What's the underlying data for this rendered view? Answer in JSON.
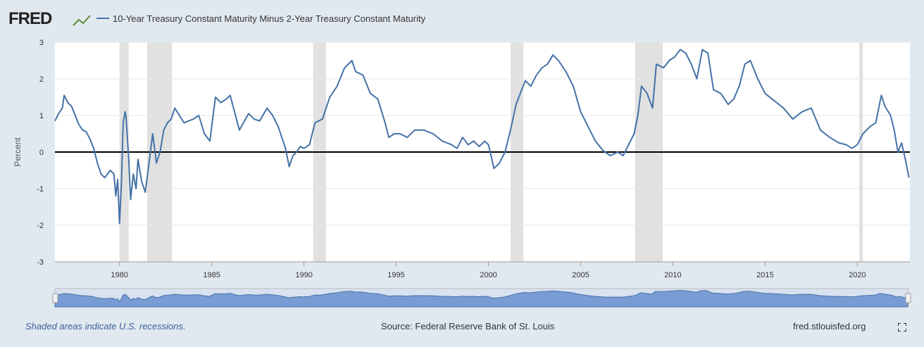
{
  "header": {
    "logo": "FRED",
    "series_title": "10-Year Treasury Constant Maturity Minus 2-Year Treasury Constant Maturity"
  },
  "footer": {
    "recession_note": "Shaded areas indicate U.S. recessions.",
    "source": "Source: Federal Reserve Bank of St. Louis",
    "site": "fred.stlouisfed.org"
  },
  "colors": {
    "line": "#4572a7",
    "recession": "#e1e1e1",
    "zero_line": "#000000",
    "background": "#e1e9f0",
    "plot_bg": "#ffffff",
    "navigator_fill": "#6a8fcf"
  },
  "icons": [
    "fred-chart-icon",
    "fullscreen-icon",
    "navigator-handle-icon"
  ],
  "chart_data": {
    "type": "line",
    "title": "10-Year Treasury Constant Maturity Minus 2-Year Treasury Constant Maturity",
    "ylabel": "Percent",
    "xlabel": "",
    "xlim": [
      1976.5,
      2022.85
    ],
    "ylim": [
      -3,
      3
    ],
    "yticks": [
      -3,
      -2,
      -1,
      0,
      1,
      2,
      3
    ],
    "xticks": [
      1980,
      1985,
      1990,
      1995,
      2000,
      2005,
      2010,
      2015,
      2020
    ],
    "grid": true,
    "legend": "top-left",
    "recessions": [
      [
        1980.0,
        1980.5
      ],
      [
        1981.5,
        1982.85
      ],
      [
        1990.5,
        1991.2
      ],
      [
        2001.2,
        2001.9
      ],
      [
        2007.95,
        2009.45
      ],
      [
        2020.1,
        2020.3
      ]
    ],
    "series": [
      {
        "name": "10-Year Treasury Constant Maturity Minus 2-Year Treasury Constant Maturity",
        "x": [
          1976.5,
          1976.7,
          1976.9,
          1977.0,
          1977.2,
          1977.4,
          1977.6,
          1977.8,
          1978.0,
          1978.2,
          1978.4,
          1978.6,
          1978.8,
          1979.0,
          1979.2,
          1979.5,
          1979.7,
          1979.8,
          1979.9,
          1980.0,
          1980.1,
          1980.2,
          1980.3,
          1980.35,
          1980.5,
          1980.6,
          1980.75,
          1980.9,
          1981.0,
          1981.2,
          1981.4,
          1981.6,
          1981.8,
          1982.0,
          1982.2,
          1982.4,
          1982.6,
          1982.8,
          1983.0,
          1983.5,
          1984.0,
          1984.3,
          1984.6,
          1984.9,
          1985.2,
          1985.5,
          1985.8,
          1986.0,
          1986.5,
          1987.0,
          1987.3,
          1987.6,
          1988.0,
          1988.3,
          1988.6,
          1989.0,
          1989.2,
          1989.4,
          1989.6,
          1989.8,
          1990.0,
          1990.3,
          1990.6,
          1991.0,
          1991.4,
          1991.8,
          1992.2,
          1992.6,
          1992.8,
          1993.2,
          1993.6,
          1994.0,
          1994.4,
          1994.6,
          1994.9,
          1995.2,
          1995.6,
          1996.0,
          1996.5,
          1997.0,
          1997.5,
          1998.0,
          1998.3,
          1998.6,
          1998.9,
          1999.2,
          1999.5,
          1999.8,
          2000.0,
          2000.1,
          2000.3,
          2000.6,
          2000.9,
          2001.2,
          2001.5,
          2001.8,
          2002.0,
          2002.3,
          2002.6,
          2002.9,
          2003.2,
          2003.5,
          2003.8,
          2004.2,
          2004.6,
          2005.0,
          2005.4,
          2005.8,
          2006.2,
          2006.6,
          2007.0,
          2007.3,
          2007.6,
          2007.9,
          2008.1,
          2008.3,
          2008.6,
          2008.9,
          2009.1,
          2009.5,
          2009.8,
          2010.1,
          2010.4,
          2010.7,
          2011.0,
          2011.3,
          2011.6,
          2011.9,
          2012.2,
          2012.6,
          2013.0,
          2013.3,
          2013.6,
          2013.9,
          2014.2,
          2014.6,
          2015.0,
          2015.5,
          2016.0,
          2016.5,
          2017.0,
          2017.5,
          2018.0,
          2018.5,
          2019.0,
          2019.4,
          2019.7,
          2020.0,
          2020.3,
          2020.7,
          2021.0,
          2021.3,
          2021.5,
          2021.8,
          2022.0,
          2022.2,
          2022.4,
          2022.6,
          2022.8
        ],
        "values": [
          0.85,
          1.05,
          1.2,
          1.55,
          1.35,
          1.25,
          1.0,
          0.75,
          0.6,
          0.55,
          0.35,
          0.1,
          -0.3,
          -0.6,
          -0.7,
          -0.5,
          -0.6,
          -1.2,
          -0.75,
          -1.95,
          -0.9,
          0.8,
          1.1,
          1.0,
          -0.2,
          -1.3,
          -0.6,
          -1.0,
          -0.2,
          -0.8,
          -1.1,
          -0.3,
          0.5,
          -0.3,
          0.0,
          0.6,
          0.8,
          0.9,
          1.2,
          0.8,
          0.9,
          1.0,
          0.5,
          0.3,
          1.5,
          1.35,
          1.45,
          1.55,
          0.6,
          1.05,
          0.9,
          0.85,
          1.2,
          1.0,
          0.7,
          0.1,
          -0.4,
          -0.1,
          0.0,
          0.15,
          0.1,
          0.2,
          0.8,
          0.9,
          1.5,
          1.8,
          2.3,
          2.5,
          2.2,
          2.1,
          1.6,
          1.45,
          0.8,
          0.4,
          0.5,
          0.5,
          0.4,
          0.6,
          0.6,
          0.5,
          0.3,
          0.2,
          0.1,
          0.4,
          0.2,
          0.3,
          0.15,
          0.3,
          0.2,
          0.0,
          -0.45,
          -0.3,
          0.0,
          0.6,
          1.3,
          1.7,
          1.95,
          1.8,
          2.1,
          2.3,
          2.4,
          2.65,
          2.5,
          2.2,
          1.8,
          1.1,
          0.7,
          0.3,
          0.05,
          -0.1,
          0.0,
          -0.1,
          0.2,
          0.5,
          1.0,
          1.8,
          1.6,
          1.2,
          2.4,
          2.3,
          2.5,
          2.6,
          2.8,
          2.7,
          2.4,
          2.0,
          2.8,
          2.7,
          1.7,
          1.6,
          1.3,
          1.45,
          1.8,
          2.4,
          2.5,
          2.0,
          1.6,
          1.4,
          1.2,
          0.9,
          1.1,
          1.2,
          0.6,
          0.4,
          0.25,
          0.2,
          0.1,
          0.2,
          0.5,
          0.7,
          0.8,
          1.55,
          1.25,
          1.0,
          0.6,
          0.0,
          0.25,
          -0.2,
          -0.7
        ]
      }
    ]
  }
}
